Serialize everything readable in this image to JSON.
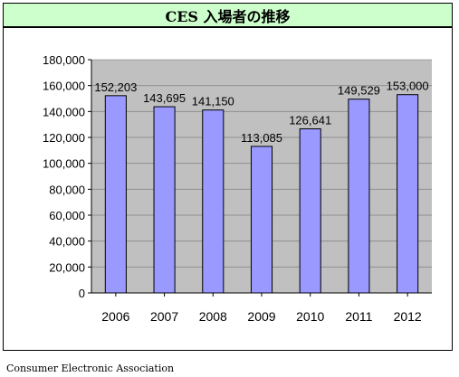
{
  "page": {
    "source": "Consumer Electronic Association"
  },
  "colors": {
    "title_background": "#ccffcc",
    "plot_background": "#c0c0c0",
    "bar_fill": "#9999ff",
    "bar_stroke": "#000000"
  },
  "chart_data": {
    "type": "bar",
    "title": "CES 入場者の推移",
    "xlabel": "",
    "ylabel": "",
    "categories": [
      "2006",
      "2007",
      "2008",
      "2009",
      "2010",
      "2011",
      "2012"
    ],
    "values": [
      152203,
      143695,
      141150,
      113085,
      126641,
      149529,
      153000
    ],
    "value_labels": [
      "152,203",
      "143,695",
      "141,150",
      "113,085",
      "126,641",
      "149,529",
      "153,000"
    ],
    "ylim": [
      0,
      180000
    ],
    "yticks": [
      0,
      20000,
      40000,
      60000,
      80000,
      100000,
      120000,
      140000,
      160000,
      180000
    ],
    "ytick_labels": [
      "0",
      "20,000",
      "40,000",
      "60,000",
      "80,000",
      "100,000",
      "120,000",
      "140,000",
      "160,000",
      "180,000"
    ],
    "grid": "horizontal",
    "legend": "none"
  }
}
